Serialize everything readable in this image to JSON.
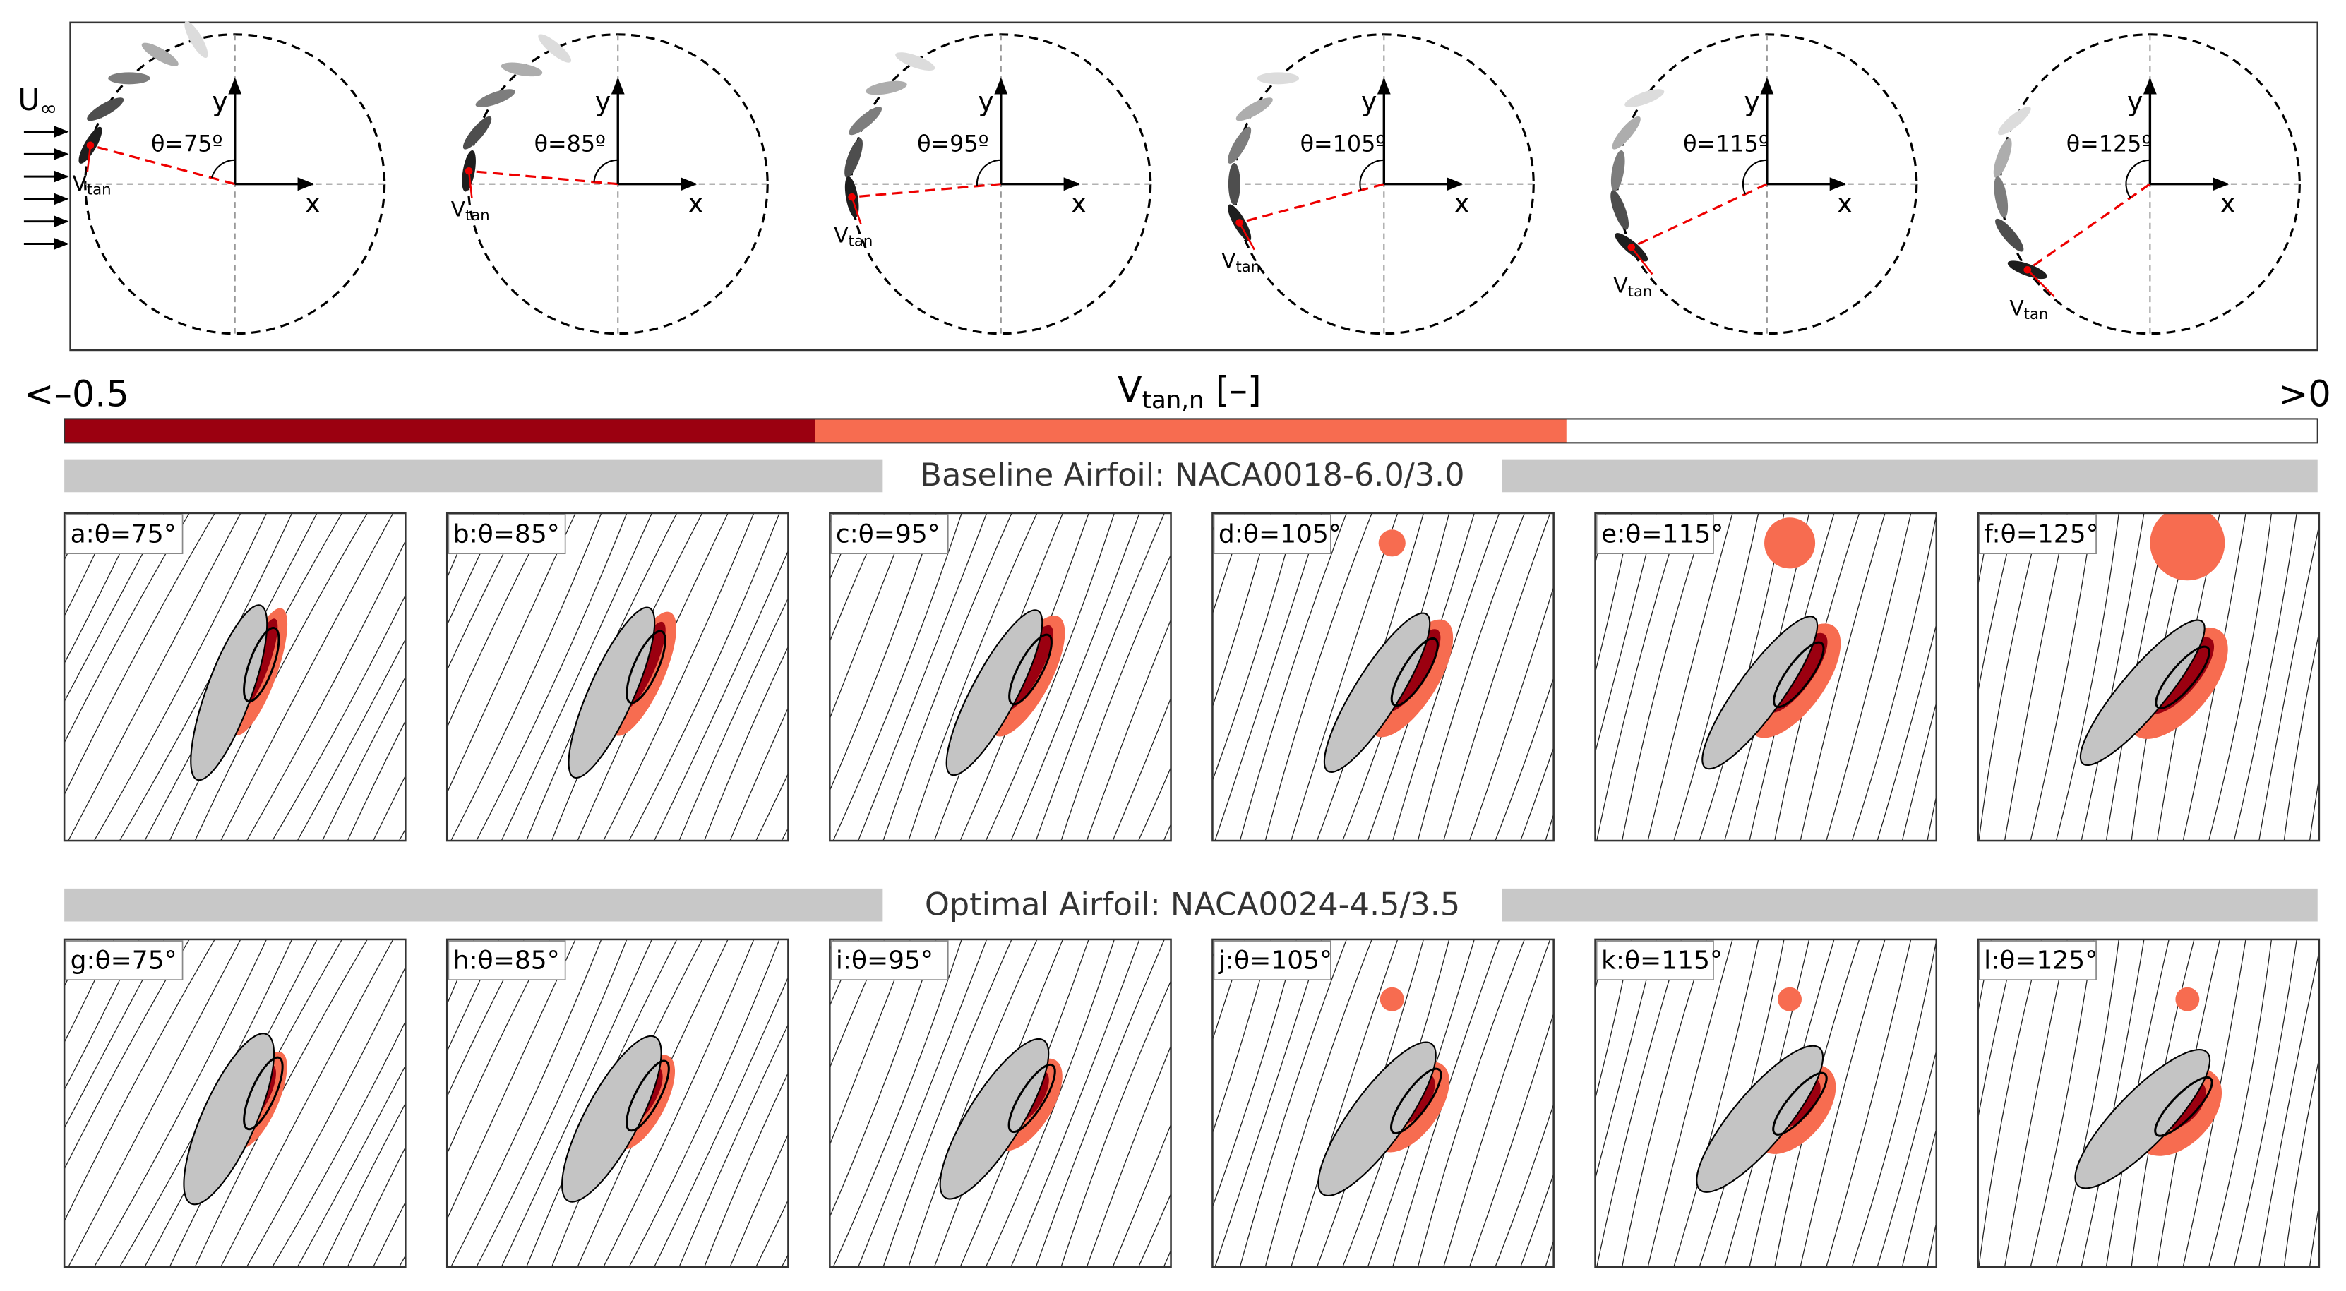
{
  "schematic": {
    "inflow": {
      "main": "U",
      "sub": "∞"
    },
    "panels": [
      {
        "theta": "θ=75º",
        "axis_x": "x",
        "axis_y": "y",
        "vtan": {
          "main": "V",
          "sub": "tan"
        }
      },
      {
        "theta": "θ=85º",
        "axis_x": "x",
        "axis_y": "y",
        "vtan": {
          "main": "V",
          "sub": "tan"
        }
      },
      {
        "theta": "θ=95º",
        "axis_x": "x",
        "axis_y": "y",
        "vtan": {
          "main": "V",
          "sub": "tan"
        }
      },
      {
        "theta": "θ=105º",
        "axis_x": "x",
        "axis_y": "y",
        "vtan": {
          "main": "V",
          "sub": "tan"
        }
      },
      {
        "theta": "θ=115º",
        "axis_x": "x",
        "axis_y": "y",
        "vtan": {
          "main": "V",
          "sub": "tan"
        }
      },
      {
        "theta": "θ=125º",
        "axis_x": "x",
        "axis_y": "y",
        "vtan": {
          "main": "V",
          "sub": "tan"
        }
      }
    ]
  },
  "colorbar": {
    "min_label": "<–0.5",
    "max_label": ">0",
    "title": {
      "main": "V",
      "sub": "tan,n",
      "rest": " [–]"
    }
  },
  "sections": [
    {
      "title": "Baseline Airfoil: NACA0018-6.0/3.0",
      "panels": [
        "a:θ=75°",
        "b:θ=85°",
        "c:θ=95°",
        "d:θ=105°",
        "e:θ=115°",
        "f:θ=125°"
      ]
    },
    {
      "title": "Optimal Airfoil: NACA0024-4.5/3.5",
      "panels": [
        "g:θ=75°",
        "h:θ=85°",
        "i:θ=95°",
        "j:θ=105°",
        "k:θ=115°",
        "l:θ=125°"
      ]
    }
  ]
}
